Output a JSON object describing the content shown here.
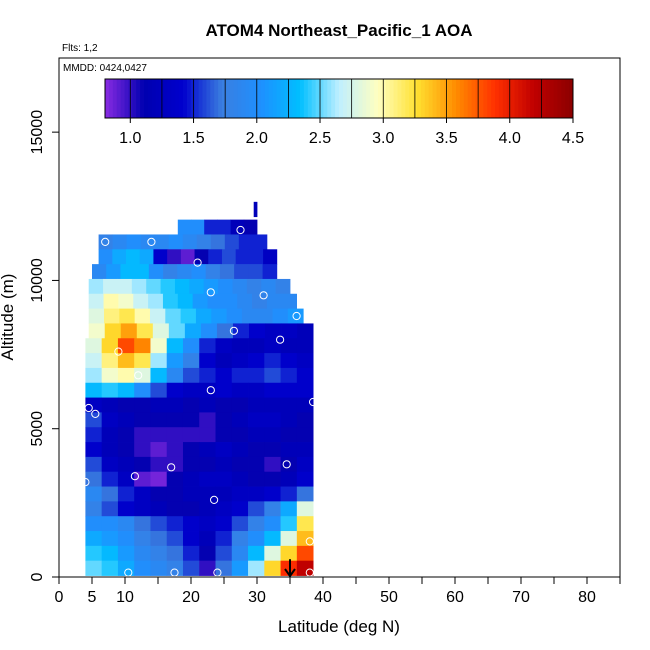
{
  "chart_data": {
    "type": "heatmap",
    "title": "ATOM4 Northeast_Pacific_1 AOA",
    "subtitle_flights": "Flts: 1,2",
    "subtitle_dates": "MMDD: 0424,0427",
    "xlabel": "Latitude (deg N)",
    "ylabel": "Altitude (m)",
    "xlim": [
      0,
      85
    ],
    "ylim": [
      0,
      17500
    ],
    "x_ticks": [
      0,
      5,
      10,
      20,
      30,
      40,
      50,
      60,
      70,
      80
    ],
    "x_minor_ticks": [
      15,
      25,
      35,
      45,
      55,
      65,
      75,
      85
    ],
    "y_ticks": [
      0,
      5000,
      10000,
      15000
    ],
    "colorbar": {
      "range": [
        0.8,
        4.5
      ],
      "ticks": [
        "1.0",
        "1.5",
        "2.0",
        "2.5",
        "3.0",
        "3.5",
        "4.0",
        "4.5"
      ],
      "tick_values": [
        1.0,
        1.5,
        2.0,
        2.5,
        3.0,
        3.5,
        4.0,
        4.5
      ],
      "colors": [
        "#8a2be2",
        "#0000b0",
        "#0000cd",
        "#3a7ee0",
        "#1e90ff",
        "#00bfff",
        "#bfefff",
        "#ffffc0",
        "#ffe030",
        "#ff8c00",
        "#ff3000",
        "#c00000",
        "#8b0000"
      ]
    },
    "rows": [
      {
        "alt": 12400,
        "lat0": 29.5,
        "lat1": 30.0,
        "vals": [
          1.2
        ]
      },
      {
        "alt": 11800,
        "lat0": 18.0,
        "lat1": 30.0,
        "vals": [
          2.0,
          2.0,
          1.5,
          1.5,
          1.2,
          1.1
        ]
      },
      {
        "alt": 11300,
        "lat0": 6.0,
        "lat1": 31.5,
        "vals": [
          1.8,
          1.9,
          2.0,
          1.9,
          1.9,
          2.0,
          1.9,
          1.8,
          1.7,
          1.6,
          1.5,
          1.5
        ]
      },
      {
        "alt": 10800,
        "lat0": 6.0,
        "lat1": 33.0,
        "vals": [
          2.0,
          2.2,
          2.3,
          2.2,
          1.4,
          1.0,
          0.9,
          1.1,
          1.5,
          1.6,
          1.5,
          1.5,
          1.3
        ]
      },
      {
        "alt": 10300,
        "lat0": 5.0,
        "lat1": 33.0,
        "vals": [
          1.9,
          2.1,
          2.3,
          2.3,
          2.0,
          1.8,
          1.9,
          2.0,
          1.8,
          1.7,
          1.6,
          1.6,
          1.5
        ]
      },
      {
        "alt": 9800,
        "lat0": 4.5,
        "lat1": 35.0,
        "vals": [
          2.6,
          2.7,
          2.7,
          2.6,
          2.5,
          2.4,
          2.3,
          2.2,
          2.1,
          2.0,
          1.9,
          1.8,
          1.9,
          1.8
        ]
      },
      {
        "alt": 9300,
        "lat0": 4.5,
        "lat1": 36.0,
        "vals": [
          2.7,
          3.0,
          2.9,
          2.7,
          2.6,
          2.4,
          2.3,
          2.1,
          2.0,
          2.0,
          1.9,
          1.8,
          1.9,
          1.9
        ]
      },
      {
        "alt": 8800,
        "lat0": 4.5,
        "lat1": 37.0,
        "vals": [
          2.8,
          3.1,
          3.2,
          3.0,
          2.7,
          2.5,
          2.4,
          2.2,
          2.1,
          2.0,
          1.9,
          1.9,
          2.0,
          2.1
        ]
      },
      {
        "alt": 8300,
        "lat0": 4.5,
        "lat1": 38.5,
        "vals": [
          2.9,
          3.3,
          3.5,
          3.2,
          2.8,
          2.5,
          2.2,
          2.0,
          1.7,
          1.5,
          1.4,
          1.3,
          1.3,
          1.2
        ]
      },
      {
        "alt": 7800,
        "lat0": 4.0,
        "lat1": 38.5,
        "vals": [
          2.8,
          3.3,
          3.8,
          3.6,
          2.9,
          2.3,
          2.0,
          1.5,
          1.3,
          1.2,
          1.2,
          1.3,
          1.2,
          1.2
        ]
      },
      {
        "alt": 7300,
        "lat0": 4.0,
        "lat1": 38.5,
        "vals": [
          2.7,
          3.1,
          3.4,
          3.2,
          2.6,
          2.1,
          1.8,
          1.4,
          1.2,
          1.3,
          1.4,
          1.5,
          1.4,
          1.3
        ]
      },
      {
        "alt": 6800,
        "lat0": 4.0,
        "lat1": 38.5,
        "vals": [
          2.6,
          2.9,
          3.0,
          2.8,
          2.3,
          1.9,
          1.6,
          1.5,
          1.4,
          1.5,
          1.5,
          1.6,
          1.5,
          1.4
        ]
      },
      {
        "alt": 6300,
        "lat0": 4.0,
        "lat1": 38.5,
        "vals": [
          2.3,
          2.4,
          2.3,
          2.0,
          1.6,
          1.4,
          1.3,
          1.3,
          1.4,
          1.3,
          1.3,
          1.4,
          1.4,
          1.4
        ]
      },
      {
        "alt": 5800,
        "lat0": 4.0,
        "lat1": 38.5,
        "vals": [
          1.3,
          1.2,
          1.1,
          1.1,
          1.2,
          1.2,
          1.1,
          1.2,
          1.1,
          1.1,
          1.2,
          1.2,
          1.2,
          1.2
        ]
      },
      {
        "alt": 5300,
        "lat0": 4.0,
        "lat1": 38.5,
        "vals": [
          1.6,
          1.3,
          1.2,
          1.1,
          1.1,
          1.1,
          1.1,
          1.0,
          1.1,
          1.2,
          1.3,
          1.3,
          1.2,
          1.1
        ]
      },
      {
        "alt": 4800,
        "lat0": 4.0,
        "lat1": 38.5,
        "vals": [
          1.5,
          1.2,
          1.1,
          1.0,
          1.0,
          1.0,
          1.0,
          1.0,
          1.1,
          1.1,
          1.2,
          1.2,
          1.1,
          1.1
        ]
      },
      {
        "alt": 4300,
        "lat0": 4.0,
        "lat1": 38.5,
        "vals": [
          1.4,
          1.2,
          1.1,
          1.0,
          0.9,
          1.0,
          1.1,
          1.2,
          1.3,
          1.2,
          1.1,
          1.1,
          1.2,
          1.2
        ]
      },
      {
        "alt": 3800,
        "lat0": 4.0,
        "lat1": 38.5,
        "vals": [
          1.6,
          1.3,
          1.2,
          1.1,
          1.0,
          1.0,
          1.1,
          1.1,
          1.2,
          1.1,
          1.1,
          1.0,
          1.1,
          1.3
        ]
      },
      {
        "alt": 3300,
        "lat0": 4.0,
        "lat1": 38.5,
        "vals": [
          1.7,
          1.5,
          1.3,
          0.9,
          0.85,
          1.1,
          1.2,
          1.3,
          1.3,
          1.2,
          1.1,
          1.1,
          1.2,
          1.4
        ]
      },
      {
        "alt": 2800,
        "lat0": 4.0,
        "lat1": 38.5,
        "vals": [
          1.9,
          1.7,
          1.5,
          1.3,
          1.1,
          1.1,
          1.2,
          1.2,
          1.2,
          1.3,
          1.3,
          1.4,
          1.5,
          1.7
        ]
      },
      {
        "alt": 2300,
        "lat0": 4.0,
        "lat1": 38.5,
        "vals": [
          1.8,
          1.6,
          1.4,
          1.3,
          1.2,
          1.1,
          1.1,
          1.2,
          1.3,
          1.4,
          1.6,
          1.8,
          2.2,
          2.8
        ]
      },
      {
        "alt": 1800,
        "lat0": 4.0,
        "lat1": 38.5,
        "vals": [
          2.0,
          2.0,
          1.9,
          1.7,
          1.6,
          1.5,
          1.4,
          1.3,
          1.4,
          1.6,
          1.8,
          2.0,
          2.4,
          3.2
        ]
      },
      {
        "alt": 1300,
        "lat0": 4.0,
        "lat1": 38.5,
        "vals": [
          2.2,
          2.1,
          2.0,
          1.8,
          1.7,
          1.6,
          1.4,
          1.2,
          1.5,
          1.8,
          2.0,
          2.3,
          2.8,
          3.4
        ]
      },
      {
        "alt": 800,
        "lat0": 4.0,
        "lat1": 38.5,
        "vals": [
          2.4,
          2.3,
          2.1,
          1.9,
          1.8,
          1.7,
          1.5,
          1.1,
          1.6,
          1.9,
          2.3,
          2.8,
          3.3,
          3.8
        ]
      },
      {
        "alt": 300,
        "lat0": 4.0,
        "lat1": 38.5,
        "vals": [
          2.5,
          2.4,
          2.2,
          2.0,
          1.9,
          1.8,
          1.6,
          1.0,
          1.7,
          2.1,
          2.6,
          3.3,
          3.9,
          4.2
        ]
      }
    ],
    "sample_points": [
      [
        7.0,
        11300
      ],
      [
        14.0,
        11300
      ],
      [
        27.5,
        11700
      ],
      [
        21.0,
        10600
      ],
      [
        23.0,
        9600
      ],
      [
        31.0,
        9500
      ],
      [
        36.0,
        8800
      ],
      [
        26.5,
        8300
      ],
      [
        33.5,
        8000
      ],
      [
        9.0,
        7600
      ],
      [
        12.0,
        6800
      ],
      [
        23.0,
        6300
      ],
      [
        38.5,
        5900
      ],
      [
        4.5,
        5700
      ],
      [
        5.5,
        5500
      ],
      [
        17.0,
        3700
      ],
      [
        34.5,
        3800
      ],
      [
        11.5,
        3400
      ],
      [
        4.0,
        3200
      ],
      [
        23.5,
        2600
      ],
      [
        38.0,
        1200
      ],
      [
        10.5,
        150
      ],
      [
        17.5,
        150
      ],
      [
        24.0,
        150
      ],
      [
        38.0,
        150
      ]
    ],
    "arrow": {
      "lat": 35.0,
      "alt_top": 600,
      "alt_bottom": 0
    }
  }
}
